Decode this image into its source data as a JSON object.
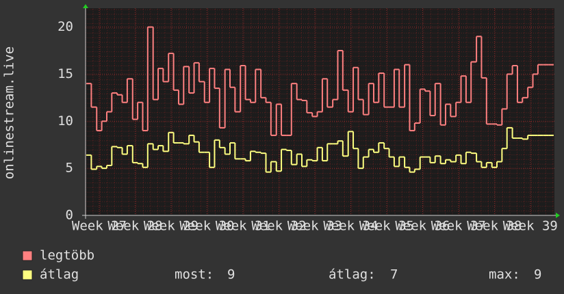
{
  "chart_data": {
    "type": "line",
    "step": true,
    "y_label": "onlinestream.live",
    "xlim": [
      26.62,
      39.67
    ],
    "xticks": [
      {
        "value": 27,
        "label": "Week 27"
      },
      {
        "value": 28,
        "label": "Week 28"
      },
      {
        "value": 29,
        "label": "Week 29"
      },
      {
        "value": 30,
        "label": "Week 30"
      },
      {
        "value": 31,
        "label": "Week 31"
      },
      {
        "value": 32,
        "label": "Week 32"
      },
      {
        "value": 33,
        "label": "Week 33"
      },
      {
        "value": 34,
        "label": "Week 34"
      },
      {
        "value": 35,
        "label": "Week 35"
      },
      {
        "value": 36,
        "label": "Week 36"
      },
      {
        "value": 37,
        "label": "Week 37"
      },
      {
        "value": 38,
        "label": "Week 38"
      },
      {
        "value": 39,
        "label": "Week 39"
      }
    ],
    "ylim": [
      0,
      22
    ],
    "yticks": [
      0,
      5,
      10,
      15,
      20
    ],
    "grid": true,
    "x": [
      26.64,
      26.78,
      26.93,
      27.07,
      27.21,
      27.35,
      27.5,
      27.64,
      27.78,
      27.93,
      28.07,
      28.21,
      28.35,
      28.5,
      28.64,
      28.78,
      28.93,
      29.07,
      29.21,
      29.35,
      29.5,
      29.64,
      29.78,
      29.93,
      30.07,
      30.21,
      30.35,
      30.5,
      30.64,
      30.78,
      30.93,
      31.07,
      31.21,
      31.35,
      31.5,
      31.64,
      31.78,
      31.93,
      32.07,
      32.21,
      32.35,
      32.5,
      32.64,
      32.78,
      32.93,
      33.07,
      33.21,
      33.35,
      33.5,
      33.64,
      33.78,
      33.93,
      34.07,
      34.21,
      34.35,
      34.5,
      34.64,
      34.78,
      34.93,
      35.07,
      35.21,
      35.35,
      35.5,
      35.64,
      35.78,
      35.93,
      36.07,
      36.21,
      36.35,
      36.5,
      36.64,
      36.78,
      36.93,
      37.07,
      37.21,
      37.35,
      37.5,
      37.64,
      37.78,
      37.93,
      38.07,
      38.21,
      38.35,
      38.5,
      38.64,
      38.78,
      38.93,
      39.07,
      39.21,
      39.35,
      39.5
    ],
    "series": [
      {
        "name": "legtöbb",
        "color": "#ff8080",
        "values": [
          14,
          11.5,
          9,
          10,
          11,
          13,
          12.8,
          12,
          14.5,
          10.2,
          12,
          9,
          20,
          12.3,
          15.6,
          14.2,
          17.2,
          13.3,
          11.8,
          15.8,
          13,
          16.2,
          14.2,
          12,
          15.6,
          13.5,
          9.3,
          15.5,
          13.6,
          11,
          15.9,
          12.3,
          12,
          15.5,
          12.5,
          12,
          8.5,
          11.8,
          8.5,
          8.5,
          14,
          12.3,
          12.2,
          10.9,
          10.5,
          11,
          14.5,
          11.5,
          12.3,
          17.5,
          13.3,
          11,
          15.7,
          12.3,
          10.7,
          14,
          12,
          15.1,
          11.5,
          11.5,
          15.5,
          11.5,
          16,
          9,
          9.8,
          13.4,
          13.2,
          10.6,
          14,
          9.6,
          11.8,
          10.5,
          12,
          14.8,
          12,
          16.3,
          19,
          14.6,
          9.7,
          9.7,
          9.6,
          11.3,
          15,
          15.9,
          12,
          12.5,
          13.6,
          15,
          16,
          16,
          16
        ]
      },
      {
        "name": "átlag",
        "color": "#ffff80",
        "values": [
          6.4,
          4.9,
          5.2,
          5,
          5.3,
          7.3,
          7.2,
          6.5,
          7.4,
          5.6,
          5.5,
          5.1,
          7.6,
          7,
          7.4,
          6.8,
          8.8,
          7.7,
          7.7,
          7.6,
          8.5,
          7.8,
          6.7,
          6.7,
          5.1,
          8,
          7.2,
          6.5,
          7.7,
          6,
          6,
          5.8,
          6.8,
          6.7,
          6.6,
          4.6,
          5.7,
          4.7,
          7,
          6.9,
          5.4,
          6.5,
          5.2,
          5.9,
          5.8,
          7.2,
          5.8,
          7.6,
          7.6,
          7.9,
          6.3,
          8.9,
          7.1,
          5,
          6.2,
          7,
          6.7,
          7.7,
          7.1,
          6.2,
          5.2,
          6.2,
          5.1,
          4.6,
          4.9,
          6.2,
          6.2,
          5.6,
          6.3,
          5.5,
          5.9,
          5.7,
          6.4,
          5.5,
          6.7,
          6.6,
          5.7,
          5.1,
          5.6,
          5.1,
          5.7,
          7.1,
          9.3,
          8.2,
          8.2,
          8.1,
          8.5,
          8.5,
          8.5,
          8.5,
          8.5
        ]
      }
    ],
    "stats": [
      {
        "label": "most:",
        "value": 9
      },
      {
        "label": "átlag:",
        "value": 7
      },
      {
        "label": "max:",
        "value": 9
      }
    ]
  }
}
